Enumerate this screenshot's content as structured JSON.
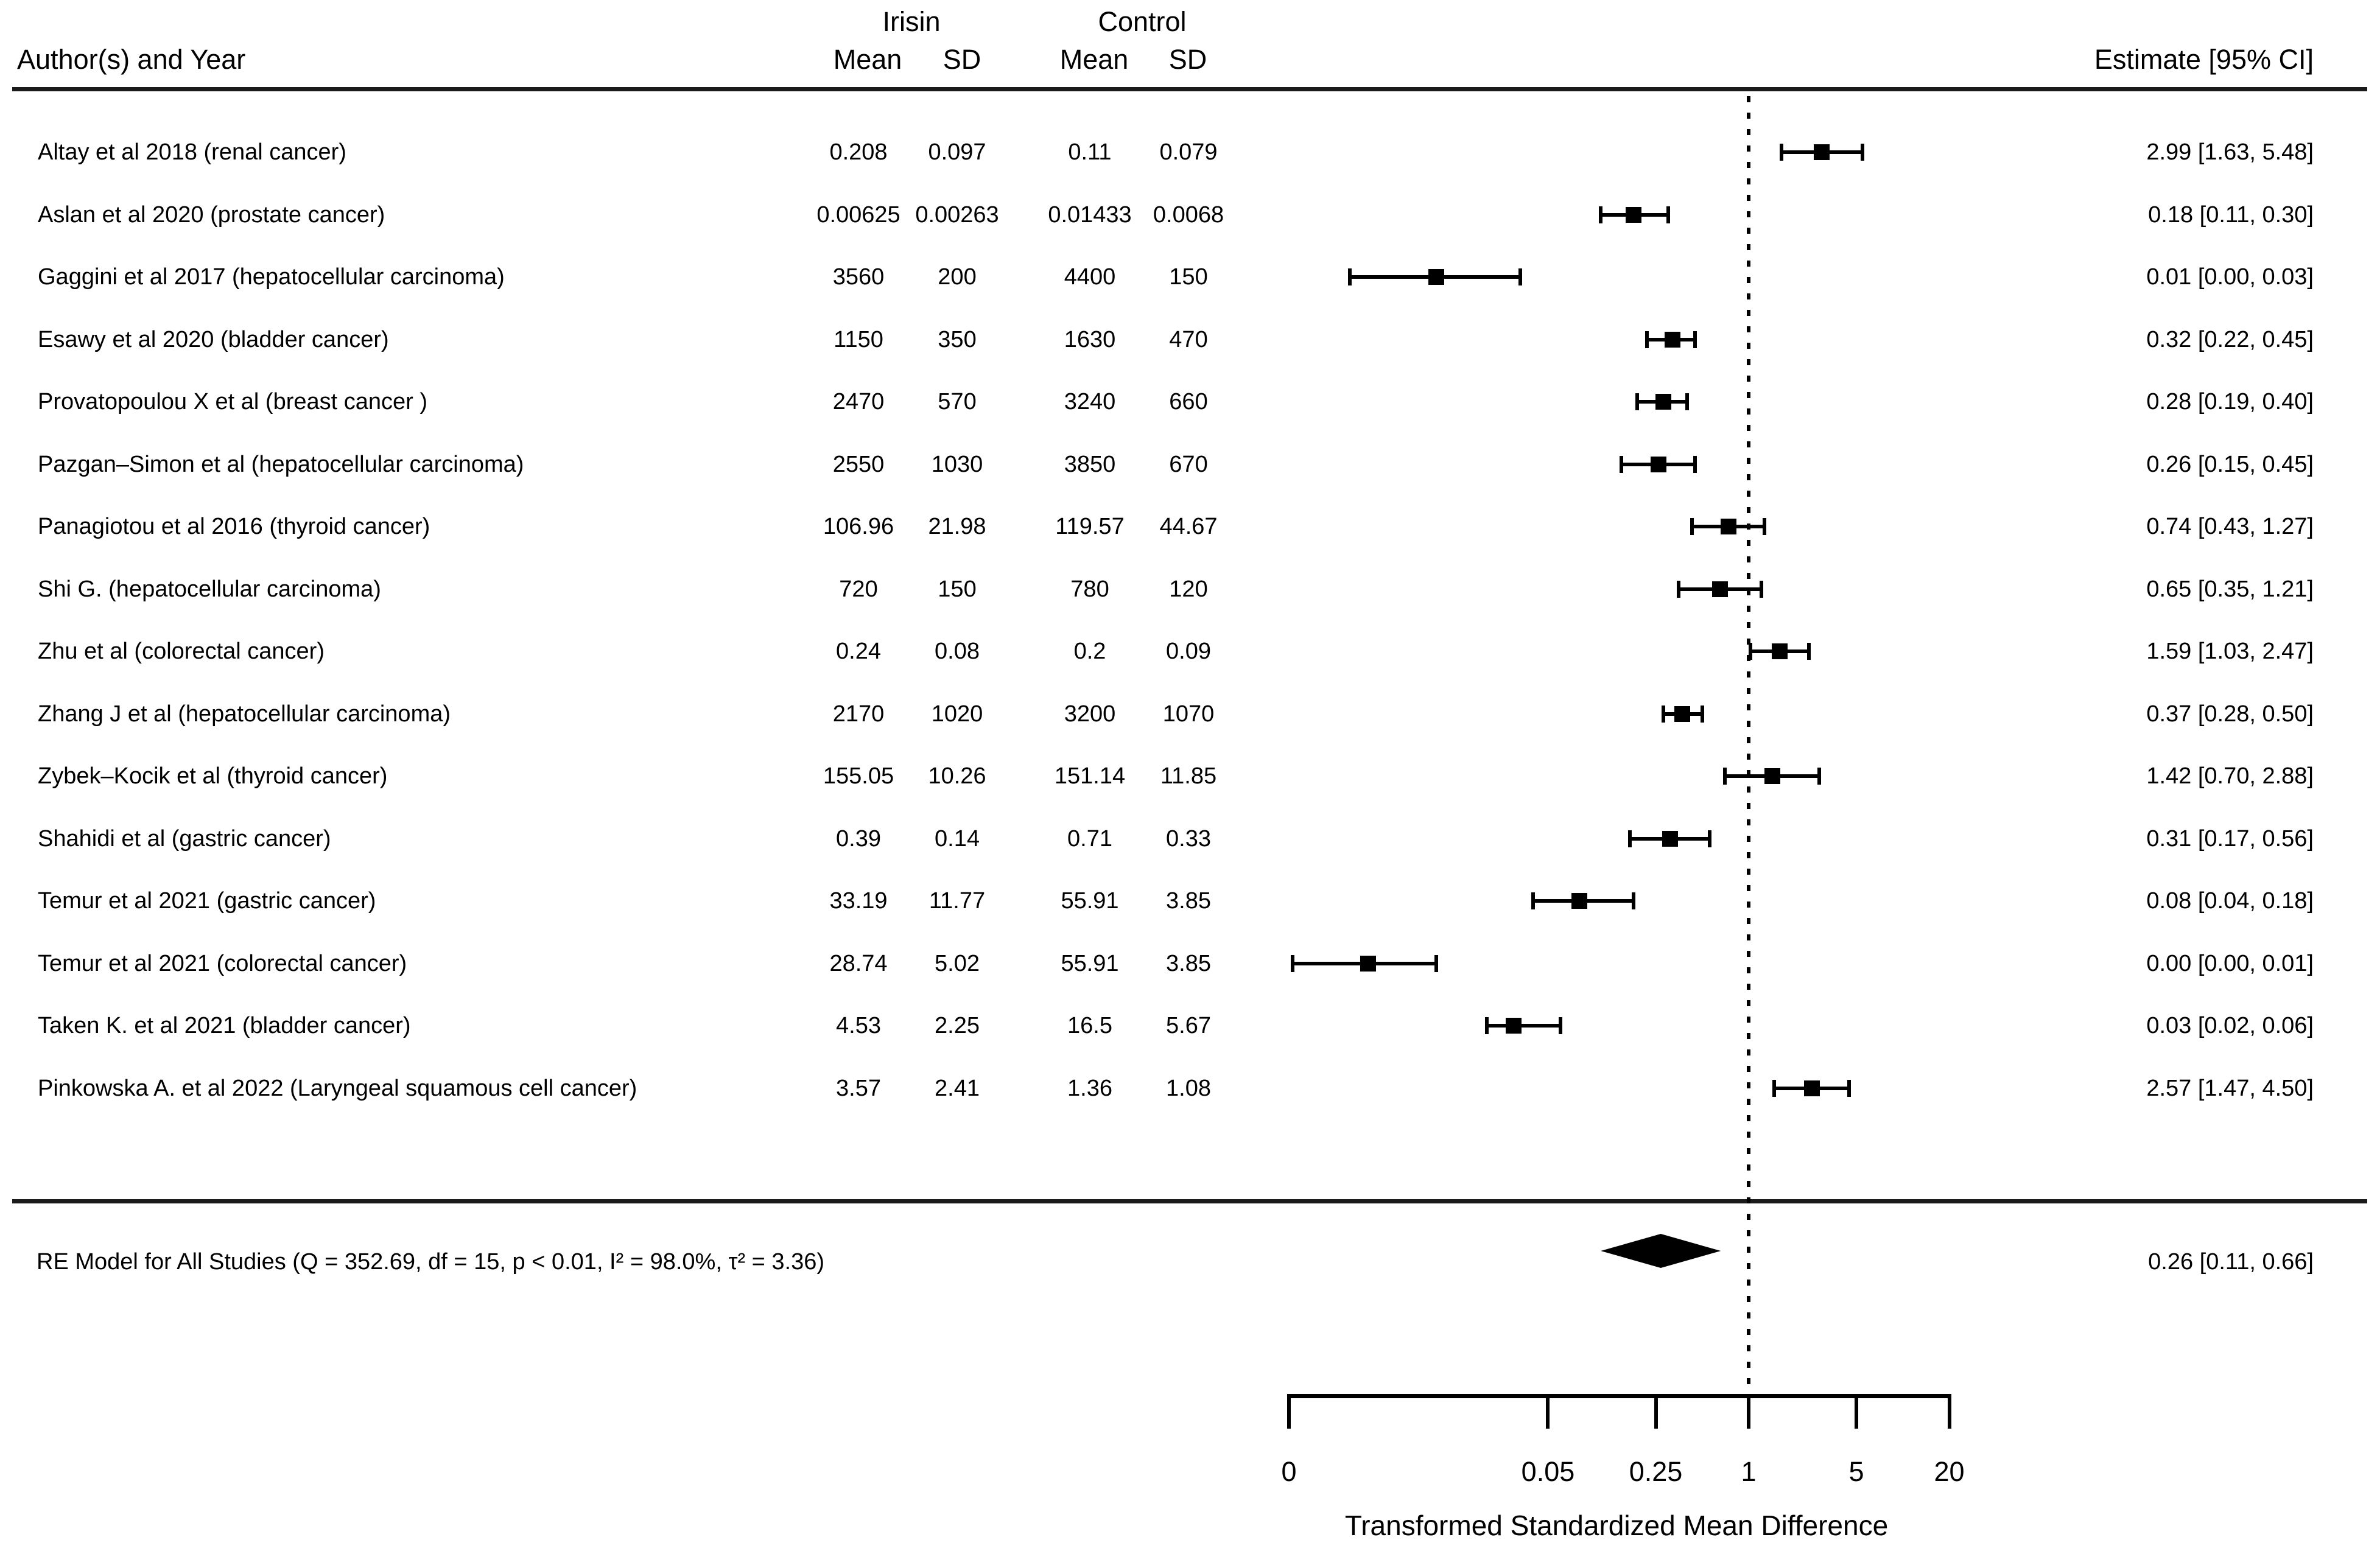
{
  "colors": {
    "ink": "#000000",
    "background": "#ffffff"
  },
  "chart_data": {
    "type": "forest",
    "title": "",
    "xlabel": "Transformed Standardized Mean Difference",
    "x_scale": "log",
    "reference_line": 1,
    "header": {
      "author": "Author(s) and Year",
      "group1": "Irisin",
      "group2": "Control",
      "mean": "Mean",
      "sd": "SD",
      "estimate": "Estimate [95% CI]"
    },
    "studies": [
      {
        "label": "Altay et al 2018 (renal cancer)",
        "irisin_mean": "0.208",
        "irisin_sd": "0.097",
        "control_mean": "0.11",
        "control_sd": "0.079",
        "estimate_label": "2.99 [1.63, 5.48]",
        "est": 2.99,
        "lo": 1.63,
        "hi": 5.48
      },
      {
        "label": "Aslan et al 2020 (prostate cancer)",
        "irisin_mean": "0.00625",
        "irisin_sd": "0.00263",
        "control_mean": "0.01433",
        "control_sd": "0.0068",
        "estimate_label": "0.18 [0.11, 0.30]",
        "est": 0.18,
        "lo": 0.11,
        "hi": 0.3
      },
      {
        "label": "Gaggini et al 2017 (hepatocellular carcinoma)",
        "irisin_mean": "3560",
        "irisin_sd": "200",
        "control_mean": "4400",
        "control_sd": "150",
        "estimate_label": "0.01 [0.00, 0.03]",
        "est": 0.01,
        "lo": 0.0,
        "hi": 0.03,
        "plot": {
          "est": 0.0094,
          "lo": 0.0026,
          "hi": 0.033
        }
      },
      {
        "label": "Esawy et al 2020 (bladder cancer)",
        "irisin_mean": "1150",
        "irisin_sd": "350",
        "control_mean": "1630",
        "control_sd": "470",
        "estimate_label": "0.32 [0.22, 0.45]",
        "est": 0.32,
        "lo": 0.22,
        "hi": 0.45
      },
      {
        "label": "Provatopoulou X et al (breast cancer )",
        "irisin_mean": "2470",
        "irisin_sd": "570",
        "control_mean": "3240",
        "control_sd": "660",
        "estimate_label": "0.28 [0.19, 0.40]",
        "est": 0.28,
        "lo": 0.19,
        "hi": 0.4
      },
      {
        "label": "Pazgan–Simon et al (hepatocellular carcinoma)",
        "irisin_mean": "2550",
        "irisin_sd": "1030",
        "control_mean": "3850",
        "control_sd": "670",
        "estimate_label": "0.26 [0.15, 0.45]",
        "est": 0.26,
        "lo": 0.15,
        "hi": 0.45
      },
      {
        "label": "Panagiotou et al 2016 (thyroid cancer)",
        "irisin_mean": "106.96",
        "irisin_sd": "21.98",
        "control_mean": "119.57",
        "control_sd": "44.67",
        "estimate_label": "0.74 [0.43, 1.27]",
        "est": 0.74,
        "lo": 0.43,
        "hi": 1.27
      },
      {
        "label": "Shi G. (hepatocellular carcinoma)",
        "irisin_mean": "720",
        "irisin_sd": "150",
        "control_mean": "780",
        "control_sd": "120",
        "estimate_label": "0.65 [0.35, 1.21]",
        "est": 0.65,
        "lo": 0.35,
        "hi": 1.21
      },
      {
        "label": "Zhu et al  (colorectal cancer)",
        "irisin_mean": "0.24",
        "irisin_sd": "0.08",
        "control_mean": "0.2",
        "control_sd": "0.09",
        "estimate_label": "1.59 [1.03, 2.47]",
        "est": 1.59,
        "lo": 1.03,
        "hi": 2.47
      },
      {
        "label": "Zhang J et al (hepatocellular carcinoma)",
        "irisin_mean": "2170",
        "irisin_sd": "1020",
        "control_mean": "3200",
        "control_sd": "1070",
        "estimate_label": "0.37 [0.28, 0.50]",
        "est": 0.37,
        "lo": 0.28,
        "hi": 0.5
      },
      {
        "label": "Zybek–Kocik et al (thyroid cancer)",
        "irisin_mean": "155.05",
        "irisin_sd": "10.26",
        "control_mean": "151.14",
        "control_sd": "11.85",
        "estimate_label": "1.42 [0.70, 2.88]",
        "est": 1.42,
        "lo": 0.7,
        "hi": 2.88
      },
      {
        "label": "Shahidi et al (gastric cancer)",
        "irisin_mean": "0.39",
        "irisin_sd": "0.14",
        "control_mean": "0.71",
        "control_sd": "0.33",
        "estimate_label": "0.31 [0.17, 0.56]",
        "est": 0.31,
        "lo": 0.17,
        "hi": 0.56
      },
      {
        "label": "Temur et al 2021 (gastric cancer)",
        "irisin_mean": "33.19",
        "irisin_sd": "11.77",
        "control_mean": "55.91",
        "control_sd": "3.85",
        "estimate_label": "0.08 [0.04, 0.18]",
        "est": 0.08,
        "lo": 0.04,
        "hi": 0.18
      },
      {
        "label": "Temur et al 2021 (colorectal cancer)",
        "irisin_mean": "28.74",
        "irisin_sd": "5.02",
        "control_mean": "55.91",
        "control_sd": "3.85",
        "estimate_label": "0.00 [0.00, 0.01]",
        "est": 0.0,
        "lo": 0.0,
        "hi": 0.01,
        "plot": {
          "est": 0.0034,
          "lo": 0.0011,
          "hi": 0.0094
        }
      },
      {
        "label": "Taken K. et al 2021 (bladder cancer)",
        "irisin_mean": "4.53",
        "irisin_sd": "2.25",
        "control_mean": "16.5",
        "control_sd": "5.67",
        "estimate_label": "0.03 [0.02, 0.06]",
        "est": 0.03,
        "lo": 0.02,
        "hi": 0.06
      },
      {
        "label": "Pinkowska A. et al 2022 (Laryngeal squamous cell cancer)",
        "irisin_mean": "3.57",
        "irisin_sd": "2.41",
        "control_mean": "1.36",
        "control_sd": "1.08",
        "estimate_label": "2.57 [1.47, 4.50]",
        "est": 2.57,
        "lo": 1.47,
        "hi": 4.5
      }
    ],
    "summary": {
      "label": "RE Model for All Studies (Q = 352.69, df = 15, p < 0.01, I² = 98.0%, τ² = 3.36)",
      "estimate_label": "0.26 [0.11, 0.66]",
      "est": 0.26,
      "lo": 0.11,
      "hi": 0.66
    },
    "axis": {
      "scale": "log",
      "title": "Transformed Standardized Mean Difference",
      "ticks": [
        {
          "v": 0,
          "label": "0"
        },
        {
          "v": 0.05,
          "label": "0.05"
        },
        {
          "v": 0.25,
          "label": "0.25"
        },
        {
          "v": 1,
          "label": "1"
        },
        {
          "v": 5,
          "label": "5"
        },
        {
          "v": 20,
          "label": "20"
        }
      ]
    }
  }
}
